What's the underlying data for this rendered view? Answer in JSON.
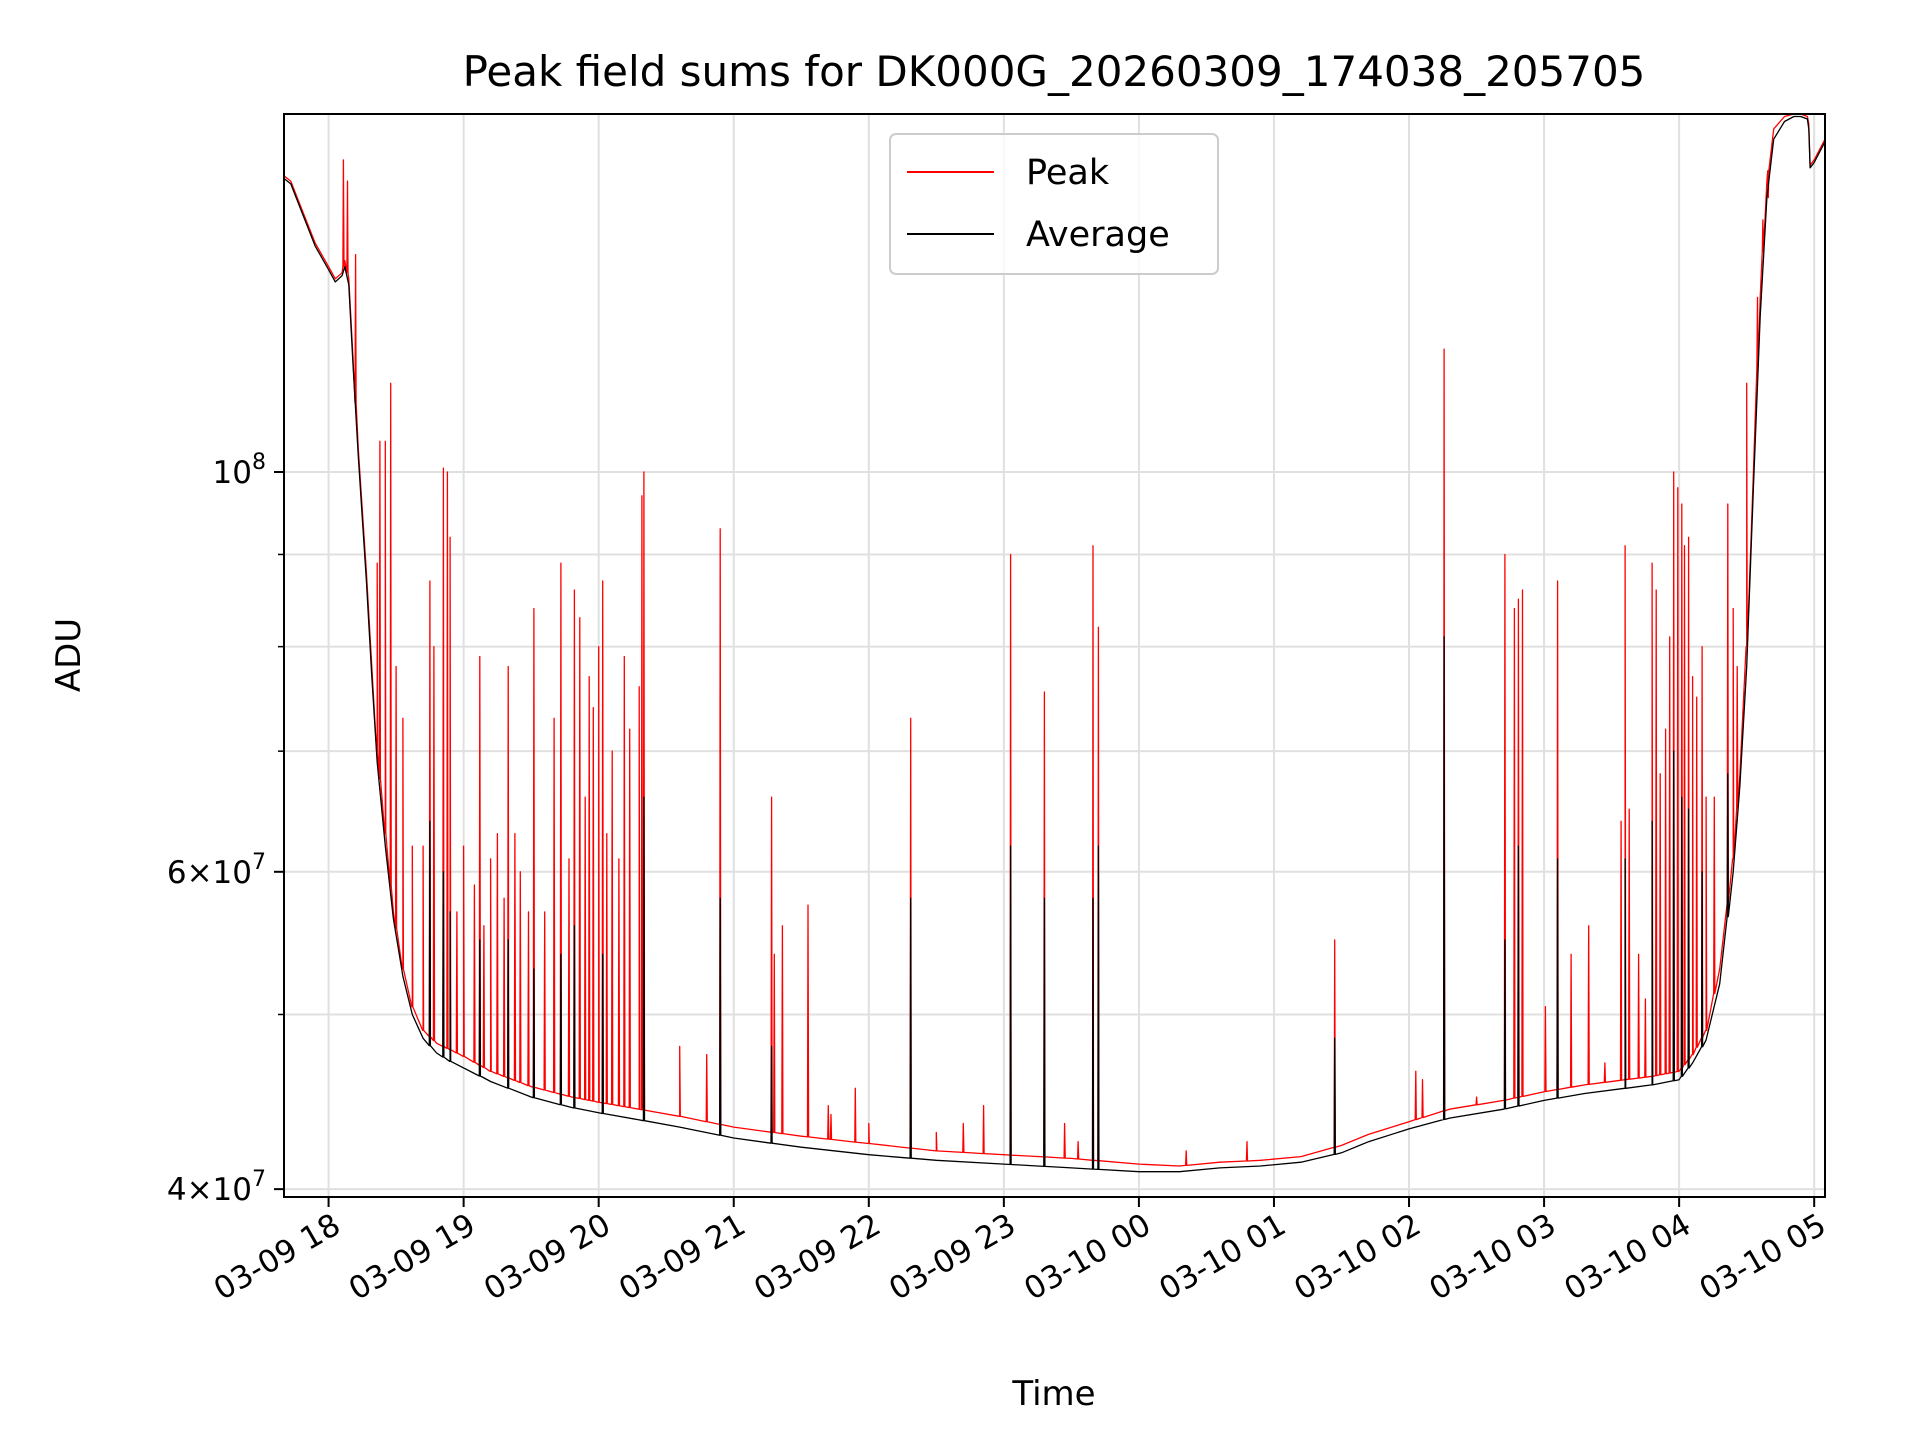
{
  "chart_data": {
    "type": "line",
    "title": "Peak field sums for DK000G_20260309_174038_205705",
    "xlabel": "Time",
    "ylabel": "ADU",
    "yscale": "log",
    "xlim": [
      17.67,
      29.08
    ],
    "ylim": [
      39600000,
      158000000
    ],
    "grid": true,
    "legend_position": "top-center",
    "colors": {
      "peak": "#ff0000",
      "average": "#000000",
      "grid": "#e0e0e0",
      "frame": "#000000"
    },
    "x_ticks": [
      {
        "value": 18,
        "label": "03-09 18"
      },
      {
        "value": 19,
        "label": "03-09 19"
      },
      {
        "value": 20,
        "label": "03-09 20"
      },
      {
        "value": 21,
        "label": "03-09 21"
      },
      {
        "value": 22,
        "label": "03-09 22"
      },
      {
        "value": 23,
        "label": "03-09 23"
      },
      {
        "value": 24,
        "label": "03-10 00"
      },
      {
        "value": 25,
        "label": "03-10 01"
      },
      {
        "value": 26,
        "label": "03-10 02"
      },
      {
        "value": 27,
        "label": "03-10 03"
      },
      {
        "value": 28,
        "label": "03-10 04"
      },
      {
        "value": 29,
        "label": "03-10 05"
      }
    ],
    "y_major_ticks": [
      {
        "value": 40000000,
        "base": "4",
        "exp": "7"
      },
      {
        "value": 60000000,
        "base": "6",
        "exp": "7"
      },
      {
        "value": 100000000,
        "base": "",
        "exp": "8"
      }
    ],
    "y_minor_gridlines": [
      50000000,
      70000000,
      80000000,
      90000000
    ],
    "series": [
      {
        "name": "Peak",
        "baseline": {
          "x": [
            17.67,
            17.72,
            17.8,
            17.9,
            18.0,
            18.05,
            18.1,
            18.12,
            18.15,
            18.18,
            18.22,
            18.28,
            18.32,
            18.36,
            18.42,
            18.48,
            18.55,
            18.62,
            18.7,
            18.8,
            18.9,
            19.0,
            19.2,
            19.5,
            19.8,
            20.0,
            20.3,
            20.6,
            21.0,
            21.5,
            22.0,
            22.5,
            23.0,
            23.5,
            24.0,
            24.3,
            24.6,
            24.9,
            25.2,
            25.5,
            25.7,
            26.0,
            26.3,
            26.7,
            27.0,
            27.3,
            27.6,
            27.8,
            28.0,
            28.1,
            28.2,
            28.3,
            28.4,
            28.45,
            28.5,
            28.55,
            28.6,
            28.65,
            28.7,
            28.78,
            28.85,
            28.9,
            28.95,
            28.96,
            28.97,
            29.0,
            29.04,
            29.08
          ],
          "y": [
            146000000,
            145000000,
            140000000,
            134000000,
            130000000,
            128000000,
            129000000,
            131000000,
            128000000,
            116000000,
            103000000,
            88000000,
            78000000,
            70000000,
            63000000,
            57000000,
            53000000,
            50500000,
            49000000,
            48200000,
            47800000,
            47400000,
            46500000,
            45600000,
            45000000,
            44700000,
            44300000,
            43900000,
            43300000,
            42800000,
            42400000,
            42000000,
            41800000,
            41600000,
            41300000,
            41200000,
            41400000,
            41500000,
            41700000,
            42300000,
            42900000,
            43600000,
            44300000,
            44800000,
            45300000,
            45700000,
            46000000,
            46200000,
            46500000,
            47500000,
            49000000,
            53000000,
            61000000,
            68000000,
            80000000,
            100000000,
            125000000,
            145000000,
            155000000,
            157500000,
            158000000,
            158000000,
            157500000,
            156000000,
            148000000,
            149000000,
            151000000,
            153000000
          ]
        },
        "spikes": [
          {
            "x": 18.11,
            "y": 149000000
          },
          {
            "x": 18.14,
            "y": 145000000
          },
          {
            "x": 18.2,
            "y": 132000000
          },
          {
            "x": 18.36,
            "y": 89000000
          },
          {
            "x": 18.38,
            "y": 104000000
          },
          {
            "x": 18.42,
            "y": 104000000
          },
          {
            "x": 18.46,
            "y": 112000000
          },
          {
            "x": 18.5,
            "y": 78000000
          },
          {
            "x": 18.55,
            "y": 73000000
          },
          {
            "x": 18.62,
            "y": 62000000
          },
          {
            "x": 18.7,
            "y": 62000000
          },
          {
            "x": 18.75,
            "y": 87000000
          },
          {
            "x": 18.78,
            "y": 80000000
          },
          {
            "x": 18.85,
            "y": 100500000
          },
          {
            "x": 18.88,
            "y": 100000000
          },
          {
            "x": 18.9,
            "y": 92000000
          },
          {
            "x": 18.95,
            "y": 57000000
          },
          {
            "x": 19.0,
            "y": 62000000
          },
          {
            "x": 19.08,
            "y": 59000000
          },
          {
            "x": 19.12,
            "y": 79000000
          },
          {
            "x": 19.15,
            "y": 56000000
          },
          {
            "x": 19.2,
            "y": 61000000
          },
          {
            "x": 19.25,
            "y": 63000000
          },
          {
            "x": 19.3,
            "y": 58000000
          },
          {
            "x": 19.33,
            "y": 78000000
          },
          {
            "x": 19.38,
            "y": 63000000
          },
          {
            "x": 19.42,
            "y": 60000000
          },
          {
            "x": 19.48,
            "y": 57000000
          },
          {
            "x": 19.52,
            "y": 84000000
          },
          {
            "x": 19.6,
            "y": 57000000
          },
          {
            "x": 19.67,
            "y": 73000000
          },
          {
            "x": 19.72,
            "y": 89000000
          },
          {
            "x": 19.78,
            "y": 61000000
          },
          {
            "x": 19.82,
            "y": 86000000
          },
          {
            "x": 19.86,
            "y": 83000000
          },
          {
            "x": 19.9,
            "y": 66000000
          },
          {
            "x": 19.93,
            "y": 77000000
          },
          {
            "x": 19.96,
            "y": 74000000
          },
          {
            "x": 20.0,
            "y": 80000000
          },
          {
            "x": 20.03,
            "y": 87000000
          },
          {
            "x": 20.06,
            "y": 63000000
          },
          {
            "x": 20.1,
            "y": 70000000
          },
          {
            "x": 20.15,
            "y": 61000000
          },
          {
            "x": 20.19,
            "y": 79000000
          },
          {
            "x": 20.23,
            "y": 72000000
          },
          {
            "x": 20.3,
            "y": 76000000
          },
          {
            "x": 20.32,
            "y": 97000000
          },
          {
            "x": 20.335,
            "y": 100000000
          },
          {
            "x": 20.6,
            "y": 48000000
          },
          {
            "x": 20.8,
            "y": 47500000
          },
          {
            "x": 20.9,
            "y": 93000000
          },
          {
            "x": 21.28,
            "y": 66000000
          },
          {
            "x": 21.3,
            "y": 54000000
          },
          {
            "x": 21.36,
            "y": 56000000
          },
          {
            "x": 21.55,
            "y": 57500000
          },
          {
            "x": 21.7,
            "y": 44500000
          },
          {
            "x": 21.72,
            "y": 44000000
          },
          {
            "x": 21.9,
            "y": 45500000
          },
          {
            "x": 22.0,
            "y": 43500000
          },
          {
            "x": 22.31,
            "y": 73000000
          },
          {
            "x": 22.5,
            "y": 43000000
          },
          {
            "x": 22.7,
            "y": 43500000
          },
          {
            "x": 22.85,
            "y": 44500000
          },
          {
            "x": 23.05,
            "y": 90000000
          },
          {
            "x": 23.3,
            "y": 75500000
          },
          {
            "x": 23.45,
            "y": 43500000
          },
          {
            "x": 23.55,
            "y": 42500000
          },
          {
            "x": 23.66,
            "y": 91000000
          },
          {
            "x": 23.7,
            "y": 82000000
          },
          {
            "x": 24.35,
            "y": 42000000
          },
          {
            "x": 24.8,
            "y": 42500000
          },
          {
            "x": 25.45,
            "y": 55000000
          },
          {
            "x": 26.05,
            "y": 46500000
          },
          {
            "x": 26.1,
            "y": 46000000
          },
          {
            "x": 26.26,
            "y": 117000000
          },
          {
            "x": 26.5,
            "y": 45000000
          },
          {
            "x": 26.71,
            "y": 90000000
          },
          {
            "x": 26.78,
            "y": 84000000
          },
          {
            "x": 26.81,
            "y": 85000000
          },
          {
            "x": 26.84,
            "y": 86000000
          },
          {
            "x": 27.01,
            "y": 50500000
          },
          {
            "x": 27.1,
            "y": 87000000
          },
          {
            "x": 27.2,
            "y": 54000000
          },
          {
            "x": 27.33,
            "y": 56000000
          },
          {
            "x": 27.45,
            "y": 47000000
          },
          {
            "x": 27.57,
            "y": 64000000
          },
          {
            "x": 27.6,
            "y": 91000000
          },
          {
            "x": 27.63,
            "y": 65000000
          },
          {
            "x": 27.7,
            "y": 54000000
          },
          {
            "x": 27.75,
            "y": 51000000
          },
          {
            "x": 27.8,
            "y": 89000000
          },
          {
            "x": 27.83,
            "y": 86000000
          },
          {
            "x": 27.86,
            "y": 68000000
          },
          {
            "x": 27.9,
            "y": 72000000
          },
          {
            "x": 27.93,
            "y": 81000000
          },
          {
            "x": 27.96,
            "y": 100000000
          },
          {
            "x": 27.99,
            "y": 98000000
          },
          {
            "x": 28.02,
            "y": 96000000
          },
          {
            "x": 28.04,
            "y": 91000000
          },
          {
            "x": 28.07,
            "y": 92000000
          },
          {
            "x": 28.1,
            "y": 77000000
          },
          {
            "x": 28.13,
            "y": 75000000
          },
          {
            "x": 28.17,
            "y": 80000000
          },
          {
            "x": 28.2,
            "y": 66000000
          },
          {
            "x": 28.26,
            "y": 66000000
          },
          {
            "x": 28.36,
            "y": 96000000
          },
          {
            "x": 28.4,
            "y": 84000000
          },
          {
            "x": 28.43,
            "y": 78000000
          },
          {
            "x": 28.5,
            "y": 112000000
          },
          {
            "x": 28.58,
            "y": 125000000
          },
          {
            "x": 28.62,
            "y": 138000000
          },
          {
            "x": 28.66,
            "y": 142000000
          }
        ]
      },
      {
        "name": "Average",
        "baseline": {
          "x": [
            17.67,
            17.72,
            17.8,
            17.9,
            18.0,
            18.05,
            18.1,
            18.12,
            18.15,
            18.18,
            18.22,
            18.28,
            18.32,
            18.36,
            18.42,
            18.48,
            18.55,
            18.62,
            18.7,
            18.8,
            18.9,
            19.0,
            19.2,
            19.5,
            19.8,
            20.0,
            20.3,
            20.6,
            21.0,
            21.5,
            22.0,
            22.5,
            23.0,
            23.5,
            24.0,
            24.3,
            24.6,
            24.9,
            25.2,
            25.5,
            25.7,
            26.0,
            26.3,
            26.7,
            27.0,
            27.3,
            27.6,
            27.8,
            28.0,
            28.1,
            28.2,
            28.3,
            28.4,
            28.45,
            28.5,
            28.55,
            28.6,
            28.65,
            28.7,
            28.78,
            28.85,
            28.9,
            28.95,
            28.96,
            28.97,
            29.0,
            29.04,
            29.08
          ],
          "y": [
            145500000,
            144500000,
            139500000,
            133500000,
            129500000,
            127500000,
            128500000,
            130000000,
            127000000,
            115000000,
            102000000,
            87000000,
            77000000,
            69000000,
            62000000,
            56500000,
            52500000,
            50000000,
            48500000,
            47600000,
            47100000,
            46700000,
            45900000,
            45000000,
            44400000,
            44100000,
            43700000,
            43300000,
            42700000,
            42200000,
            41800000,
            41500000,
            41300000,
            41100000,
            40900000,
            40900000,
            41100000,
            41200000,
            41400000,
            41900000,
            42500000,
            43200000,
            43800000,
            44300000,
            44800000,
            45200000,
            45500000,
            45700000,
            46000000,
            47000000,
            48400000,
            52000000,
            60000000,
            67000000,
            78000000,
            98000000,
            122000000,
            142000000,
            153000000,
            156500000,
            157500000,
            157500000,
            157000000,
            155000000,
            147500000,
            148500000,
            150500000,
            152500000
          ]
        },
        "spikes": [
          {
            "x": 18.75,
            "y": 64000000
          },
          {
            "x": 18.85,
            "y": 60000000
          },
          {
            "x": 18.9,
            "y": 57000000
          },
          {
            "x": 19.12,
            "y": 55000000
          },
          {
            "x": 19.33,
            "y": 55000000
          },
          {
            "x": 19.52,
            "y": 53000000
          },
          {
            "x": 19.72,
            "y": 54000000
          },
          {
            "x": 19.82,
            "y": 56000000
          },
          {
            "x": 20.03,
            "y": 54000000
          },
          {
            "x": 20.335,
            "y": 66000000
          },
          {
            "x": 20.9,
            "y": 58000000
          },
          {
            "x": 21.28,
            "y": 48000000
          },
          {
            "x": 22.31,
            "y": 58000000
          },
          {
            "x": 23.05,
            "y": 62000000
          },
          {
            "x": 23.3,
            "y": 58000000
          },
          {
            "x": 23.66,
            "y": 58000000
          },
          {
            "x": 23.7,
            "y": 62000000
          },
          {
            "x": 25.45,
            "y": 48500000
          },
          {
            "x": 26.26,
            "y": 81000000
          },
          {
            "x": 26.71,
            "y": 55000000
          },
          {
            "x": 26.81,
            "y": 62000000
          },
          {
            "x": 27.1,
            "y": 61000000
          },
          {
            "x": 27.6,
            "y": 61000000
          },
          {
            "x": 27.8,
            "y": 64000000
          },
          {
            "x": 27.96,
            "y": 70000000
          },
          {
            "x": 28.02,
            "y": 66000000
          },
          {
            "x": 28.07,
            "y": 65000000
          },
          {
            "x": 28.17,
            "y": 60000000
          },
          {
            "x": 28.36,
            "y": 68000000
          }
        ]
      }
    ]
  }
}
